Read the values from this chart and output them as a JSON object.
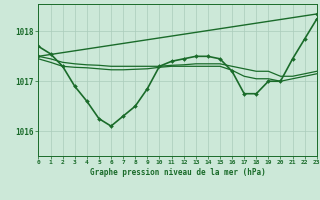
{
  "background_color": "#cce8d8",
  "plot_bg_color": "#cce8d8",
  "grid_color": "#aaccbb",
  "line_color": "#1a6b2a",
  "xlabel": "Graphe pression niveau de la mer (hPa)",
  "xlim": [
    0,
    23
  ],
  "ylim": [
    1015.5,
    1018.55
  ],
  "yticks": [
    1016,
    1017,
    1018
  ],
  "xticks": [
    0,
    1,
    2,
    3,
    4,
    5,
    6,
    7,
    8,
    9,
    10,
    11,
    12,
    13,
    14,
    15,
    16,
    17,
    18,
    19,
    20,
    21,
    22,
    23
  ],
  "series": [
    {
      "x": [
        0,
        1,
        2,
        3,
        4,
        5,
        6,
        7,
        8,
        9,
        10,
        11,
        12,
        13,
        14,
        15,
        16,
        17,
        18,
        19,
        20,
        21,
        22,
        23
      ],
      "y": [
        1017.7,
        1017.55,
        1017.3,
        1016.9,
        1016.6,
        1016.25,
        1016.1,
        1016.3,
        1016.5,
        1016.85,
        1017.3,
        1017.4,
        1017.45,
        1017.5,
        1017.5,
        1017.45,
        1017.2,
        1016.75,
        1016.75,
        1017.0,
        1017.0,
        1017.45,
        1017.85,
        1018.25
      ],
      "color": "#1a6b2a",
      "lw": 1.2,
      "marker": "D",
      "ms": 2.0,
      "zorder": 3
    },
    {
      "x": [
        0,
        23
      ],
      "y": [
        1017.5,
        1018.35
      ],
      "color": "#1a6b2a",
      "lw": 1.0,
      "marker": "D",
      "ms": 2.0,
      "zorder": 2
    },
    {
      "x": [
        0,
        1,
        2,
        3,
        4,
        5,
        6,
        7,
        8,
        9,
        10,
        11,
        12,
        13,
        14,
        15,
        16,
        17,
        18,
        19,
        20,
        21,
        22,
        23
      ],
      "y": [
        1017.5,
        1017.45,
        1017.38,
        1017.35,
        1017.33,
        1017.32,
        1017.3,
        1017.3,
        1017.3,
        1017.3,
        1017.3,
        1017.32,
        1017.33,
        1017.35,
        1017.35,
        1017.35,
        1017.3,
        1017.25,
        1017.2,
        1017.2,
        1017.1,
        1017.1,
        1017.15,
        1017.2
      ],
      "color": "#1a6b2a",
      "lw": 0.9,
      "marker": null,
      "ms": 0,
      "zorder": 2
    },
    {
      "x": [
        0,
        1,
        2,
        3,
        4,
        5,
        6,
        7,
        8,
        9,
        10,
        11,
        12,
        13,
        14,
        15,
        16,
        17,
        18,
        19,
        20,
        21,
        22,
        23
      ],
      "y": [
        1017.45,
        1017.38,
        1017.3,
        1017.28,
        1017.27,
        1017.25,
        1017.23,
        1017.23,
        1017.24,
        1017.25,
        1017.28,
        1017.3,
        1017.3,
        1017.3,
        1017.3,
        1017.3,
        1017.22,
        1017.1,
        1017.05,
        1017.05,
        1017.0,
        1017.05,
        1017.1,
        1017.15
      ],
      "color": "#1a6b2a",
      "lw": 0.9,
      "marker": null,
      "ms": 0,
      "zorder": 2
    }
  ],
  "spine_color": "#1a6b2a",
  "tick_color": "#1a6b2a",
  "xlabel_fontsize": 5.5,
  "xlabel_fontweight": "bold",
  "xtick_fontsize": 4.5,
  "ytick_fontsize": 5.5
}
